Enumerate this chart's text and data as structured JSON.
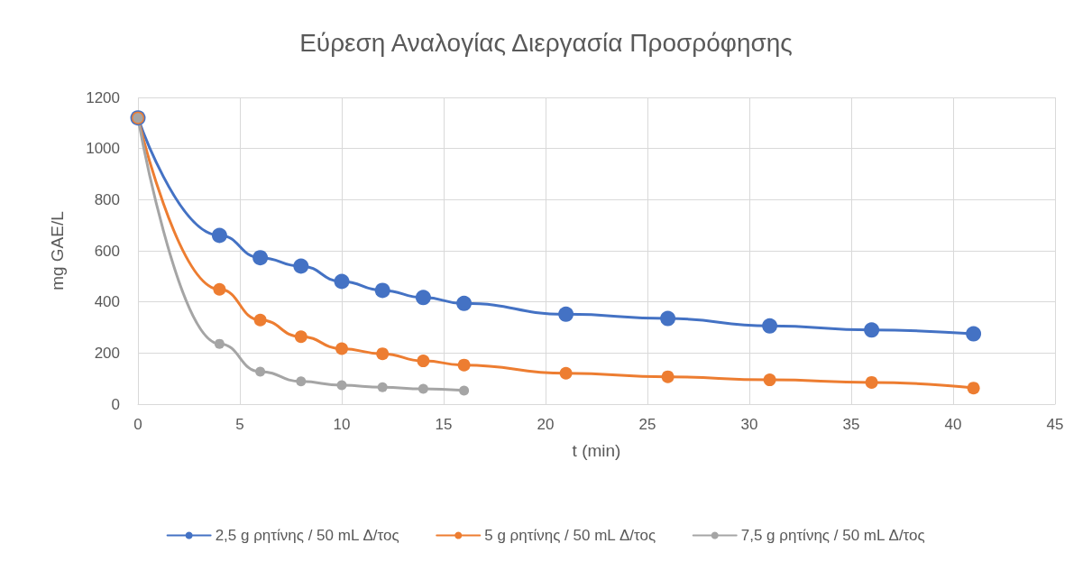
{
  "chart_data": {
    "type": "line",
    "title": "Εύρεση Αναλογίας Διεργασία Προσρόφησης",
    "xlabel": "t (min)",
    "ylabel": "mg GAE/L",
    "x": [
      0,
      4,
      6,
      8,
      10,
      12,
      14,
      16,
      21,
      26,
      31,
      36,
      41
    ],
    "series": [
      {
        "name": "2,5 g ρητίνης / 50 mL Δ/τος",
        "color": "#4472c4",
        "values": [
          1120,
          660,
          573,
          540,
          480,
          445,
          417,
          394,
          352,
          335,
          306,
          290,
          275
        ]
      },
      {
        "name": "5 g ρητίνης / 50 mL Δ/τος",
        "color": "#ed7d31",
        "values": [
          1120,
          449,
          329,
          264,
          217,
          197,
          169,
          153,
          121,
          107,
          95,
          85,
          63
        ]
      },
      {
        "name": "7,5 g ρητίνης / 50 mL Δ/τος",
        "color": "#a5a5a5",
        "x": [
          0,
          4,
          6,
          8,
          10,
          12,
          14,
          16
        ],
        "values": [
          1120,
          236,
          127,
          89,
          74,
          66,
          60,
          53
        ]
      }
    ],
    "xlim": [
      0,
      45
    ],
    "xticks": [
      0,
      5,
      10,
      15,
      20,
      25,
      30,
      35,
      40,
      45
    ],
    "ylim": [
      0,
      1200
    ],
    "yticks": [
      0,
      200,
      400,
      600,
      800,
      1000,
      1200
    ],
    "grid": true,
    "legend": "bottom",
    "marker": "circle",
    "line_style": "solid"
  }
}
